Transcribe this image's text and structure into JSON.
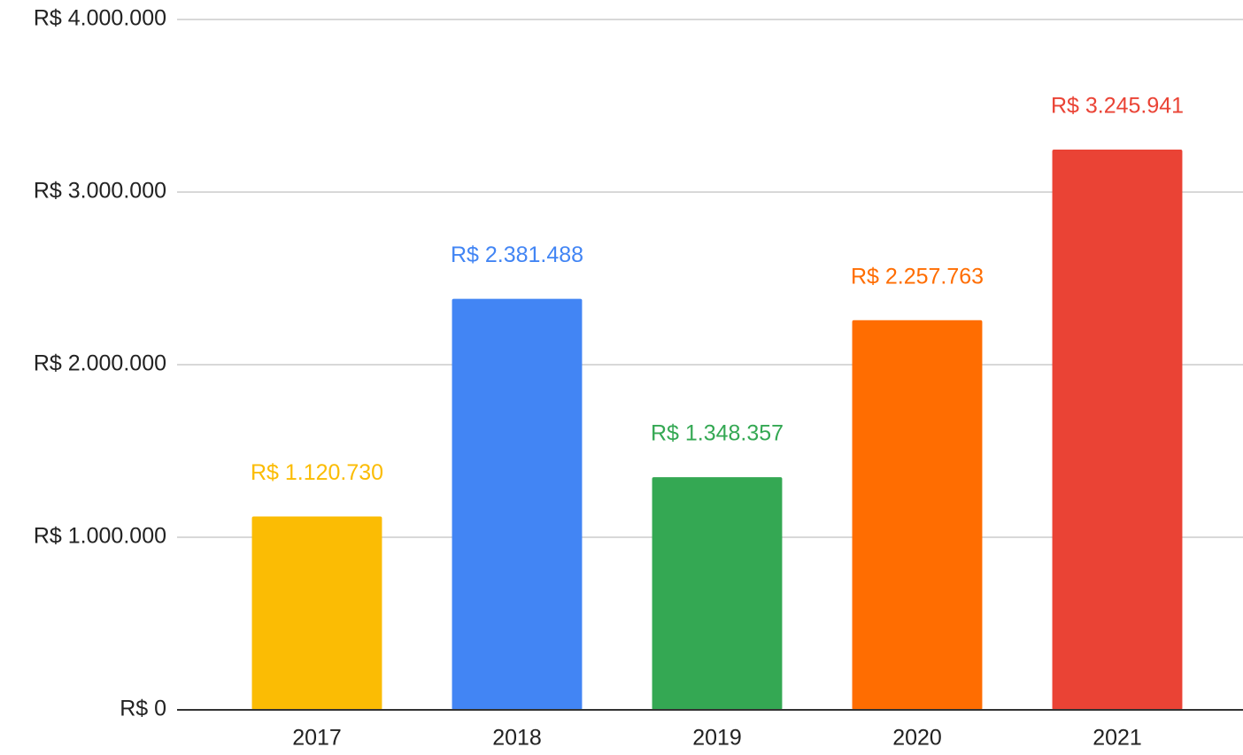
{
  "chart_data": {
    "type": "bar",
    "categories": [
      "2017",
      "2018",
      "2019",
      "2020",
      "2021"
    ],
    "values": [
      1120730,
      2381488,
      1348357,
      2257763,
      3245941
    ],
    "value_labels": [
      "R$ 1.120.730",
      "R$ 2.381.488",
      "R$ 1.348.357",
      "R$ 2.257.763",
      "R$ 3.245.941"
    ],
    "colors": [
      "#fbbc04",
      "#4285f4",
      "#34a853",
      "#ff6d01",
      "#ea4335"
    ],
    "ylim": [
      0,
      4000000
    ],
    "yticks": [
      {
        "value": 0,
        "label": "R$ 0"
      },
      {
        "value": 1000000,
        "label": "R$ 1.000.000"
      },
      {
        "value": 2000000,
        "label": "R$ 2.000.000"
      },
      {
        "value": 3000000,
        "label": "R$ 3.000.000"
      },
      {
        "value": 4000000,
        "label": "R$ 4.000.000"
      }
    ],
    "grid": true
  }
}
